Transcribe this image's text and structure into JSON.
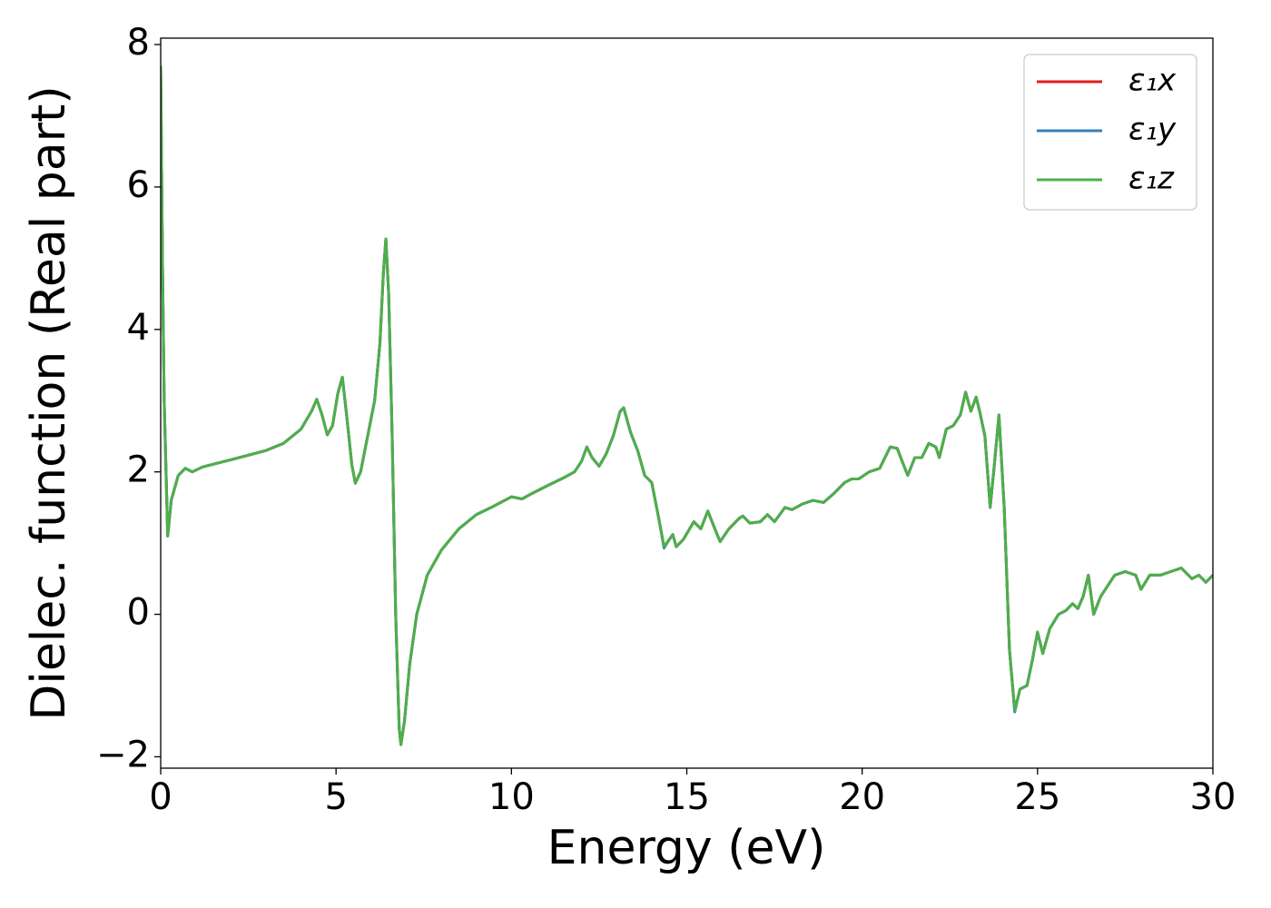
{
  "chart_data": {
    "type": "line",
    "xlabel": "Energy (eV)",
    "ylabel": "Dielec. function (Real part)",
    "xlim": [
      0,
      30
    ],
    "ylim": [
      -2.16,
      8.09
    ],
    "xticks": [
      0,
      5,
      10,
      15,
      20,
      25,
      30
    ],
    "yticks": [
      {
        "value": -2,
        "label": "−2"
      },
      0,
      2,
      4,
      6,
      8
    ],
    "legend": "upper right",
    "x": [
      0,
      0.05,
      0.1,
      0.2,
      0.3,
      0.5,
      0.7,
      0.9,
      1.2,
      2,
      3,
      3.5,
      4,
      4.3,
      4.45,
      4.6,
      4.75,
      4.9,
      5.05,
      5.18,
      5.3,
      5.45,
      5.55,
      5.7,
      5.9,
      6.1,
      6.25,
      6.35,
      6.42,
      6.5,
      6.6,
      6.7,
      6.8,
      6.85,
      6.95,
      7.1,
      7.3,
      7.6,
      8,
      8.5,
      9,
      9.5,
      10,
      10.3,
      10.6,
      11,
      11.5,
      11.8,
      12,
      12.15,
      12.3,
      12.5,
      12.7,
      12.9,
      13.1,
      13.2,
      13.4,
      13.6,
      13.8,
      14,
      14.2,
      14.35,
      14.5,
      14.6,
      14.7,
      14.9,
      15.2,
      15.4,
      15.6,
      15.8,
      15.95,
      16.2,
      16.5,
      16.6,
      16.8,
      17.1,
      17.3,
      17.5,
      17.8,
      18,
      18.3,
      18.6,
      18.9,
      19.2,
      19.5,
      19.7,
      19.9,
      20.2,
      20.5,
      20.8,
      21,
      21.1,
      21.3,
      21.5,
      21.7,
      21.9,
      22.1,
      22.2,
      22.4,
      22.6,
      22.8,
      22.95,
      23.1,
      23.25,
      23.35,
      23.5,
      23.65,
      23.75,
      23.9,
      24.05,
      24.2,
      24.35,
      24.5,
      24.7,
      24.85,
      25,
      25.15,
      25.35,
      25.6,
      25.8,
      26,
      26.15,
      26.3,
      26.45,
      26.6,
      26.8,
      27,
      27.2,
      27.5,
      27.8,
      27.95,
      28.2,
      28.5,
      28.8,
      29.1,
      29.4,
      29.6,
      29.8,
      30
    ],
    "series": [
      {
        "name": "ε₁x",
        "color": "#e41a1c",
        "values": [
          7.7,
          5,
          3,
          1.1,
          1.6,
          1.95,
          2.05,
          2.0,
          2.07,
          2.17,
          2.3,
          2.4,
          2.6,
          2.85,
          3.02,
          2.8,
          2.52,
          2.65,
          3.1,
          3.33,
          2.8,
          2.1,
          1.84,
          2.0,
          2.5,
          3.0,
          3.8,
          4.8,
          5.27,
          4.5,
          2.5,
          0,
          -1.6,
          -1.83,
          -1.5,
          -0.7,
          0,
          0.55,
          0.9,
          1.2,
          1.4,
          1.52,
          1.65,
          1.62,
          1.7,
          1.8,
          1.92,
          2.0,
          2.15,
          2.35,
          2.2,
          2.08,
          2.25,
          2.5,
          2.85,
          2.9,
          2.55,
          2.3,
          1.95,
          1.85,
          1.35,
          0.95,
          1.05,
          1.12,
          0.95,
          1.05,
          1.3,
          1.2,
          1.45,
          1.2,
          1.02,
          1.2,
          1.35,
          1.38,
          1.28,
          1.3,
          1.4,
          1.3,
          1.5,
          1.47,
          1.55,
          1.6,
          1.57,
          1.7,
          1.85,
          1.9,
          1.9,
          2.0,
          2.05,
          2.35,
          2.33,
          2.2,
          1.95,
          2.2,
          2.2,
          2.4,
          2.35,
          2.2,
          2.6,
          2.65,
          2.8,
          3.12,
          2.85,
          3.05,
          2.85,
          2.5,
          1.5,
          2.0,
          2.8,
          1.5,
          -0.5,
          -1.35,
          -1.05,
          -1.0,
          -0.65,
          -0.25,
          -0.55,
          -0.2,
          0,
          0.05,
          0.15,
          0.08,
          0.25,
          0.55,
          0,
          0.25,
          0.4,
          0.55,
          0.6,
          0.55,
          0.35,
          0.55,
          0.55,
          0.6,
          0.65,
          0.5,
          0.55,
          0.45,
          0.55
        ]
      },
      {
        "name": "ε₁y",
        "color": "#377eb8",
        "values": [
          7.7,
          5,
          3,
          1.1,
          1.6,
          1.95,
          2.05,
          2.0,
          2.07,
          2.17,
          2.3,
          2.4,
          2.6,
          2.85,
          3.02,
          2.8,
          2.52,
          2.65,
          3.1,
          3.33,
          2.8,
          2.1,
          1.84,
          2.0,
          2.5,
          3.0,
          3.8,
          4.8,
          5.27,
          4.5,
          2.5,
          0,
          -1.6,
          -1.83,
          -1.5,
          -0.7,
          0,
          0.55,
          0.9,
          1.2,
          1.4,
          1.52,
          1.65,
          1.62,
          1.7,
          1.8,
          1.92,
          2.0,
          2.15,
          2.35,
          2.2,
          2.08,
          2.25,
          2.5,
          2.85,
          2.9,
          2.55,
          2.3,
          1.95,
          1.85,
          1.35,
          0.93,
          1.05,
          1.12,
          0.95,
          1.05,
          1.3,
          1.2,
          1.45,
          1.2,
          1.02,
          1.2,
          1.35,
          1.38,
          1.28,
          1.3,
          1.4,
          1.3,
          1.5,
          1.47,
          1.55,
          1.6,
          1.57,
          1.7,
          1.85,
          1.9,
          1.9,
          2.0,
          2.05,
          2.35,
          2.33,
          2.2,
          1.95,
          2.2,
          2.2,
          2.4,
          2.35,
          2.2,
          2.6,
          2.65,
          2.8,
          3.12,
          2.85,
          3.05,
          2.85,
          2.5,
          1.5,
          2.0,
          2.8,
          1.5,
          -0.5,
          -1.37,
          -1.05,
          -1.0,
          -0.65,
          -0.25,
          -0.55,
          -0.2,
          0,
          0.05,
          0.15,
          0.08,
          0.25,
          0.55,
          0,
          0.25,
          0.4,
          0.55,
          0.6,
          0.55,
          0.35,
          0.55,
          0.55,
          0.6,
          0.65,
          0.5,
          0.55,
          0.45,
          0.55
        ]
      },
      {
        "name": "ε₁z",
        "color": "#4daf4a",
        "values": [
          7.7,
          5,
          3,
          1.1,
          1.6,
          1.95,
          2.05,
          2.0,
          2.07,
          2.17,
          2.3,
          2.4,
          2.6,
          2.85,
          3.02,
          2.8,
          2.52,
          2.65,
          3.1,
          3.33,
          2.8,
          2.1,
          1.84,
          2.0,
          2.5,
          3.0,
          3.8,
          4.8,
          5.27,
          4.5,
          2.5,
          0,
          -1.6,
          -1.83,
          -1.5,
          -0.7,
          0,
          0.55,
          0.9,
          1.2,
          1.4,
          1.52,
          1.65,
          1.62,
          1.7,
          1.8,
          1.92,
          2.0,
          2.15,
          2.35,
          2.2,
          2.08,
          2.25,
          2.5,
          2.85,
          2.9,
          2.55,
          2.3,
          1.95,
          1.85,
          1.35,
          0.95,
          1.05,
          1.12,
          0.95,
          1.05,
          1.3,
          1.2,
          1.45,
          1.2,
          1.02,
          1.2,
          1.35,
          1.38,
          1.28,
          1.3,
          1.4,
          1.3,
          1.5,
          1.47,
          1.55,
          1.6,
          1.57,
          1.7,
          1.85,
          1.9,
          1.9,
          2.0,
          2.05,
          2.35,
          2.33,
          2.2,
          1.95,
          2.2,
          2.2,
          2.4,
          2.35,
          2.2,
          2.6,
          2.65,
          2.8,
          3.12,
          2.85,
          3.05,
          2.85,
          2.5,
          1.5,
          2.0,
          2.8,
          1.5,
          -0.5,
          -1.35,
          -1.05,
          -1.0,
          -0.65,
          -0.25,
          -0.55,
          -0.2,
          0,
          0.05,
          0.15,
          0.08,
          0.25,
          0.55,
          0,
          0.25,
          0.4,
          0.55,
          0.6,
          0.55,
          0.35,
          0.55,
          0.55,
          0.6,
          0.65,
          0.5,
          0.55,
          0.45,
          0.55
        ]
      }
    ]
  }
}
